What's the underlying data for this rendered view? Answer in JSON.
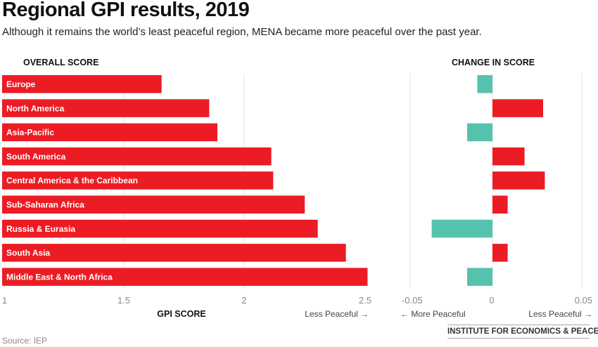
{
  "title": "Regional GPI results, 2019",
  "subtitle": "Although it remains the world’s least peaceful region, MENA became more peaceful over the past year.",
  "source": "Source: IEP",
  "brand": "INSTITUTE FOR ECONOMICS & PEACE",
  "colors": {
    "worse": "#ec1c24",
    "better": "#55c2ad",
    "grid": "#e3e3e3"
  },
  "chart_data": [
    {
      "type": "bar",
      "orientation": "horizontal",
      "title": "OVERALL SCORE",
      "xlabel": "GPI SCORE",
      "direction_note": "Less Peaceful →",
      "xlim": [
        1,
        2.5
      ],
      "xticks": [
        "1",
        "1.5",
        "2",
        "2.5"
      ],
      "categories": [
        "Europe",
        "North America",
        "Asia-Pacific",
        "South America",
        "Central America & the Caribbean",
        "Sub-Saharan Africa",
        "Russia & Eurasia",
        "South Asia",
        "Middle East & North Africa"
      ],
      "values": [
        1.657,
        1.855,
        1.889,
        2.113,
        2.121,
        2.252,
        2.306,
        2.423,
        2.513
      ]
    },
    {
      "type": "bar",
      "orientation": "horizontal",
      "title": "CHANGE IN SCORE",
      "xlim": [
        -0.05,
        0.05
      ],
      "xticks": [
        "-0.05",
        "0",
        "0.05"
      ],
      "left_note": "← More Peaceful",
      "right_note": "Less Peaceful →",
      "categories": [
        "Europe",
        "North America",
        "Asia-Pacific",
        "South America",
        "Central America & the Caribbean",
        "Sub-Saharan Africa",
        "Russia & Eurasia",
        "South Asia",
        "Middle East & North Africa"
      ],
      "values": [
        -0.009,
        0.03,
        -0.015,
        0.019,
        0.031,
        0.009,
        -0.036,
        0.009,
        -0.015
      ]
    }
  ]
}
